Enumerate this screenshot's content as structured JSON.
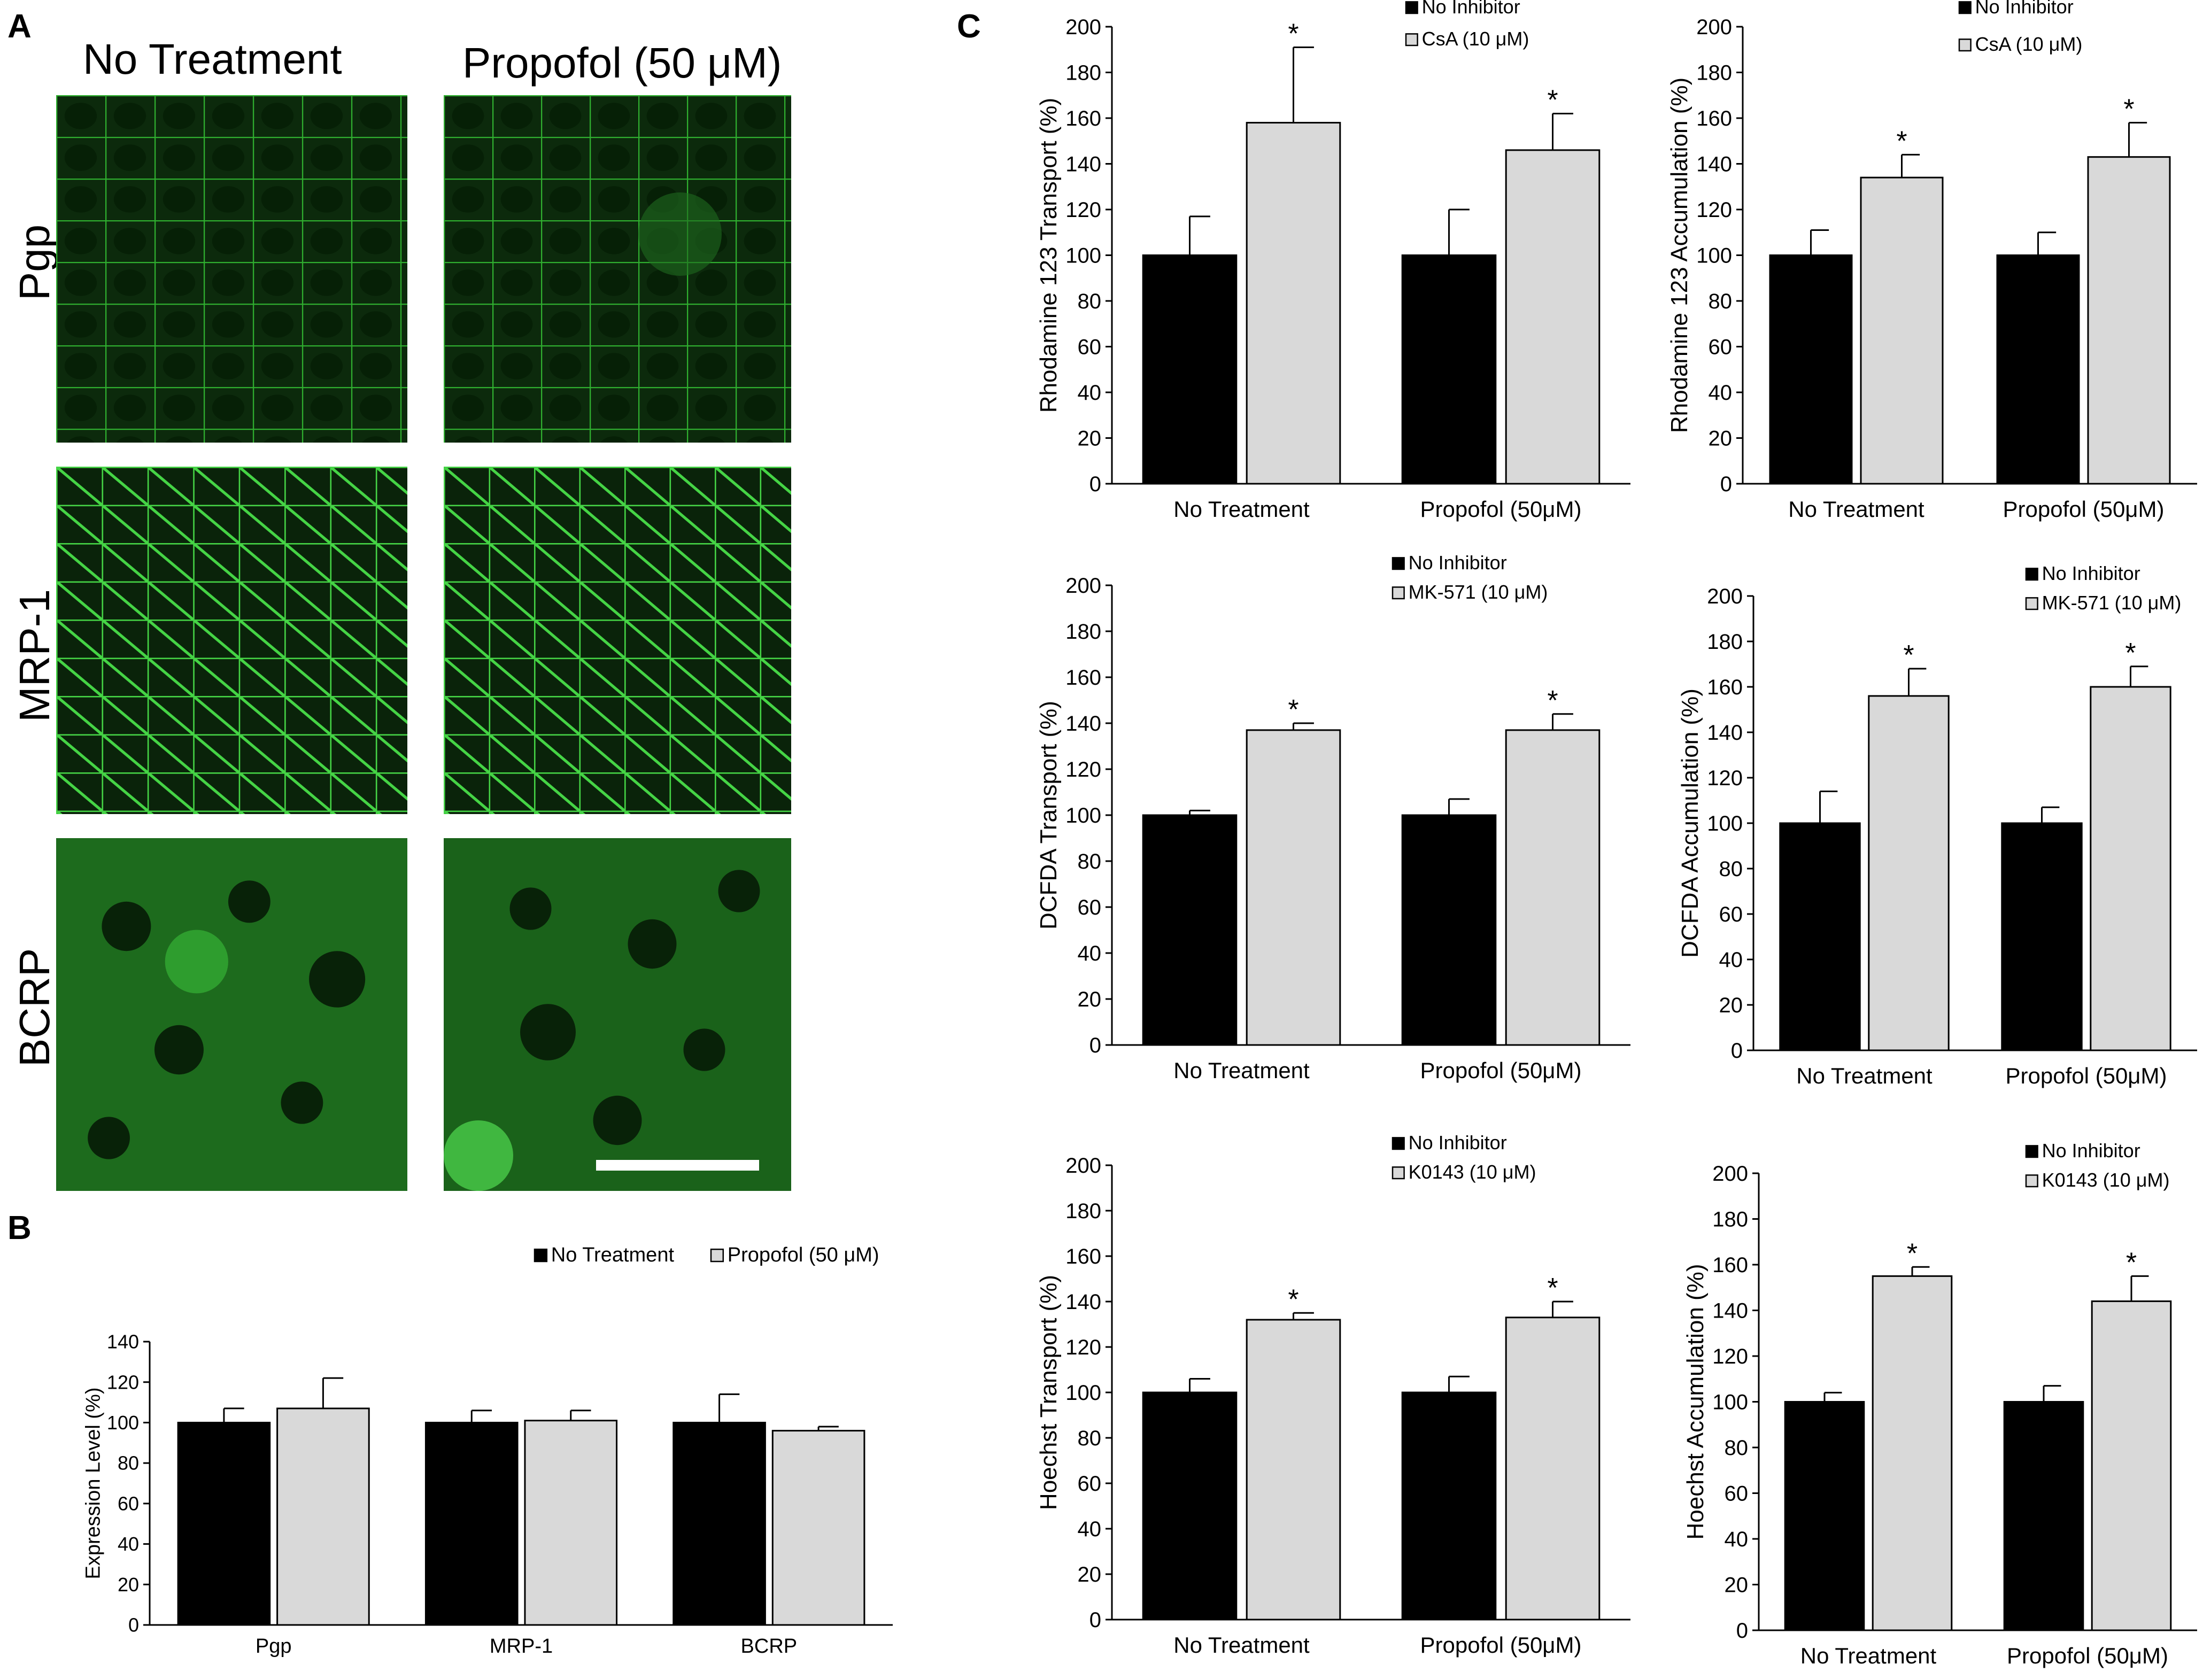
{
  "panel_labels": {
    "a": "A",
    "b": "B",
    "c": "C"
  },
  "panel_a": {
    "columns": [
      "No Treatment",
      "Propofol (50 μM)"
    ],
    "rows": [
      "Pgp",
      "MRP-1",
      "BCRP"
    ]
  },
  "chart_data": [
    {
      "id": "B",
      "type": "bar",
      "categories": [
        "Pgp",
        "MRP-1",
        "BCRP"
      ],
      "series": [
        {
          "name": "No Treatment",
          "values": [
            100,
            100,
            100
          ],
          "errors": [
            7,
            6,
            14
          ],
          "color": "#000000"
        },
        {
          "name": "Propofol (50 μM)",
          "values": [
            107,
            101,
            96
          ],
          "errors": [
            15,
            5,
            2
          ],
          "color": "#d9d9d9"
        }
      ],
      "ylabel": "Expression Level (%)",
      "ylim": [
        0,
        140
      ],
      "yticks": [
        0,
        20,
        40,
        60,
        80,
        100,
        120,
        140
      ],
      "significant": [
        [
          false,
          false
        ],
        [
          false,
          false
        ],
        [
          false,
          false
        ]
      ],
      "legend_position": "top-right"
    },
    {
      "id": "C1",
      "type": "bar",
      "categories": [
        "No Treatment",
        "Propofol (50μM)"
      ],
      "series": [
        {
          "name": "No Inhibitor",
          "values": [
            100,
            100
          ],
          "errors": [
            17,
            20
          ],
          "color": "#000000"
        },
        {
          "name": "CsA (10 μM)",
          "values": [
            158,
            146
          ],
          "errors": [
            33,
            16
          ],
          "color": "#d9d9d9"
        }
      ],
      "ylabel": "Rhodamine 123 Transport (%)",
      "ylim": [
        0,
        200
      ],
      "yticks": [
        0,
        20,
        40,
        60,
        80,
        100,
        120,
        140,
        160,
        180,
        200
      ],
      "significant": [
        [
          false,
          true
        ],
        [
          false,
          true
        ]
      ],
      "sig_mark": "*",
      "legend_position": "top-right"
    },
    {
      "id": "C2",
      "type": "bar",
      "categories": [
        "No Treatment",
        "Propofol (50μM)"
      ],
      "series": [
        {
          "name": "No Inhibitor",
          "values": [
            100,
            100
          ],
          "errors": [
            11,
            10
          ],
          "color": "#000000"
        },
        {
          "name": "CsA (10 μM)",
          "values": [
            134,
            143
          ],
          "errors": [
            10,
            15
          ],
          "color": "#d9d9d9"
        }
      ],
      "ylabel": "Rhodamine 123 Accumulation (%)",
      "ylim": [
        0,
        200
      ],
      "yticks": [
        0,
        20,
        40,
        60,
        80,
        100,
        120,
        140,
        160,
        180,
        200
      ],
      "significant": [
        [
          false,
          true
        ],
        [
          false,
          true
        ]
      ],
      "sig_mark": "*",
      "legend_position": "top-right"
    },
    {
      "id": "C3",
      "type": "bar",
      "categories": [
        "No Treatment",
        "Propofol (50μM)"
      ],
      "series": [
        {
          "name": "No Inhibitor",
          "values": [
            100,
            100
          ],
          "errors": [
            2,
            7
          ],
          "color": "#000000"
        },
        {
          "name": "MK-571  (10 μM)",
          "values": [
            137,
            137
          ],
          "errors": [
            3,
            7
          ],
          "color": "#d9d9d9"
        }
      ],
      "ylabel": "DCFDA  Transport (%)",
      "ylim": [
        0,
        200
      ],
      "yticks": [
        0,
        20,
        40,
        60,
        80,
        100,
        120,
        140,
        160,
        180,
        200
      ],
      "significant": [
        [
          false,
          true
        ],
        [
          false,
          true
        ]
      ],
      "sig_mark": "*",
      "legend_position": "top-right"
    },
    {
      "id": "C4",
      "type": "bar",
      "categories": [
        "No Treatment",
        "Propofol (50μM)"
      ],
      "series": [
        {
          "name": "No Inhibitor",
          "values": [
            100,
            100
          ],
          "errors": [
            14,
            7
          ],
          "color": "#000000"
        },
        {
          "name": "MK-571  (10 μM)",
          "values": [
            156,
            160
          ],
          "errors": [
            12,
            9
          ],
          "color": "#d9d9d9"
        }
      ],
      "ylabel": "DCFDA  Accumulation  (%)",
      "ylim": [
        0,
        200
      ],
      "yticks": [
        0,
        20,
        40,
        60,
        80,
        100,
        120,
        140,
        160,
        180,
        200
      ],
      "significant": [
        [
          false,
          true
        ],
        [
          false,
          true
        ]
      ],
      "sig_mark": "*",
      "legend_position": "top-right"
    },
    {
      "id": "C5",
      "type": "bar",
      "categories": [
        "No Treatment",
        "Propofol (50μM)"
      ],
      "series": [
        {
          "name": "No Inhibitor",
          "values": [
            100,
            100
          ],
          "errors": [
            6,
            7
          ],
          "color": "#000000"
        },
        {
          "name": "K0143 (10 μM)",
          "values": [
            132,
            133
          ],
          "errors": [
            3,
            7
          ],
          "color": "#d9d9d9"
        }
      ],
      "ylabel": "Hoechst Transport (%)",
      "ylim": [
        0,
        200
      ],
      "yticks": [
        0,
        20,
        40,
        60,
        80,
        100,
        120,
        140,
        160,
        180,
        200
      ],
      "significant": [
        [
          false,
          true
        ],
        [
          false,
          true
        ]
      ],
      "sig_mark": "*",
      "legend_position": "top-right"
    },
    {
      "id": "C6",
      "type": "bar",
      "categories": [
        "No Treatment",
        "Propofol (50μM)"
      ],
      "series": [
        {
          "name": "No Inhibitor",
          "values": [
            100,
            100
          ],
          "errors": [
            4,
            7
          ],
          "color": "#000000"
        },
        {
          "name": "K0143 (10 μM)",
          "values": [
            155,
            144
          ],
          "errors": [
            4,
            11
          ],
          "color": "#d9d9d9"
        }
      ],
      "ylabel": "Hoechst Accumulation (%)",
      "ylim": [
        0,
        200
      ],
      "yticks": [
        0,
        20,
        40,
        60,
        80,
        100,
        120,
        140,
        160,
        180,
        200
      ],
      "significant": [
        [
          false,
          true
        ],
        [
          false,
          true
        ]
      ],
      "sig_mark": "*",
      "legend_position": "top-right"
    }
  ]
}
